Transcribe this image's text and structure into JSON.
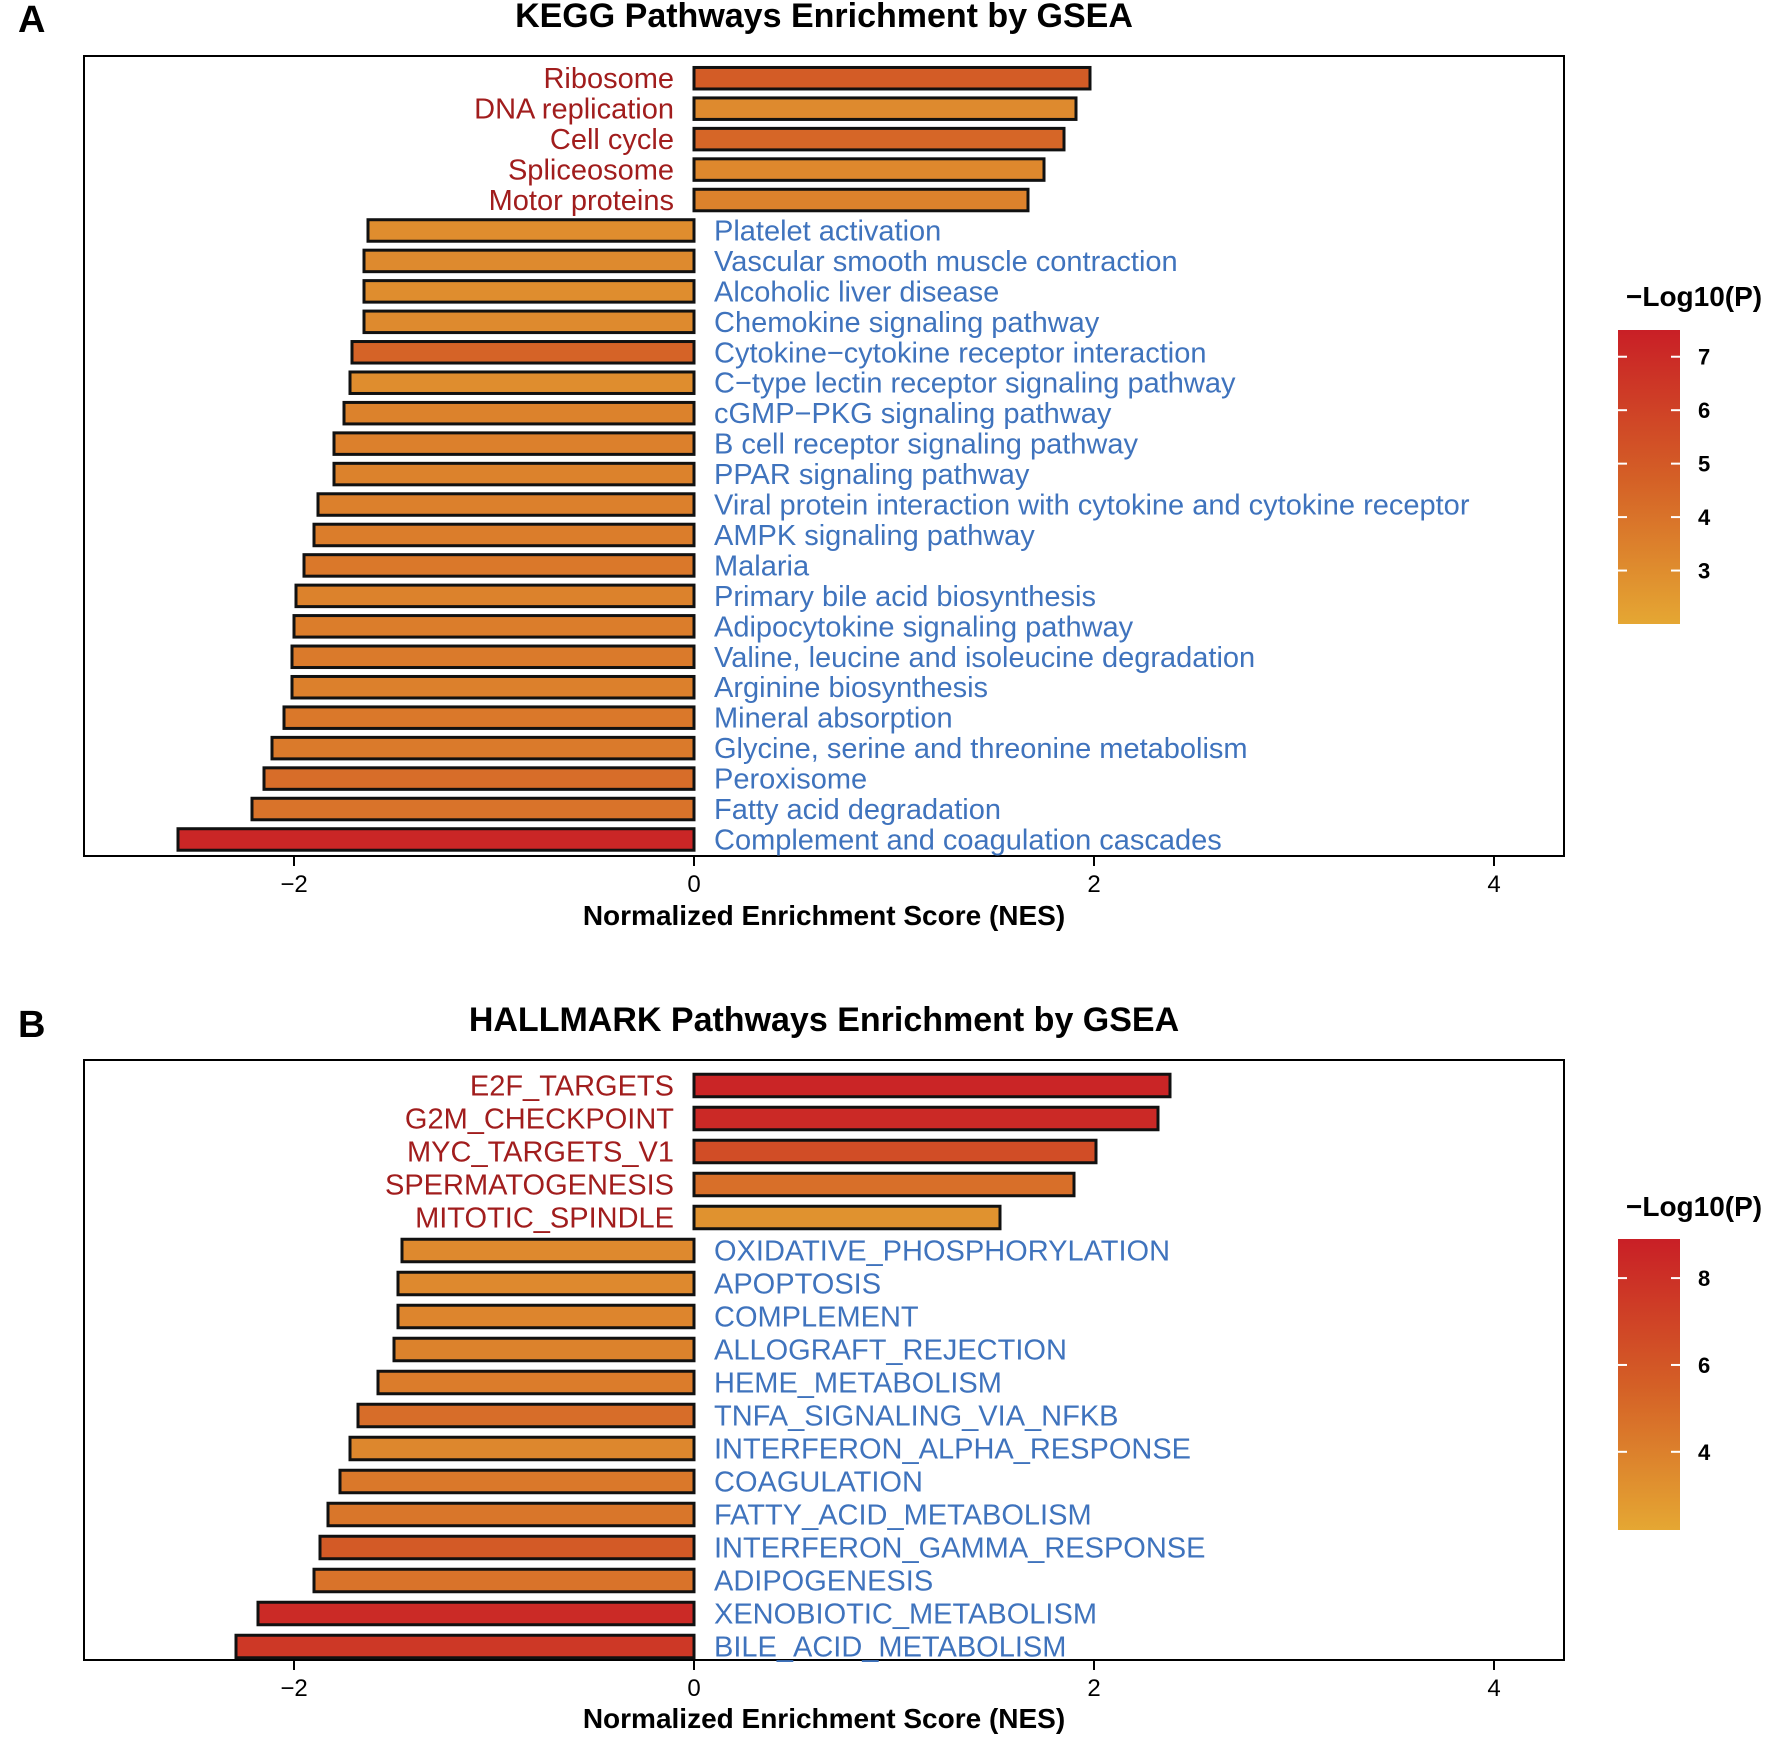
{
  "chart_data": [
    {
      "type": "bar",
      "orientation": "horizontal",
      "panel_label": "A",
      "title": "KEGG Pathways Enrichment by GSEA",
      "xlabel": "Normalized Enrichment Score (NES)",
      "ylabel": "",
      "xlim": [
        -3.05,
        4.35
      ],
      "xticks": [
        -2,
        0,
        2,
        4
      ],
      "xtick_labels": [
        "−2",
        "0",
        "2",
        "4"
      ],
      "grid": false,
      "legend": {
        "title": "−Log10(P)",
        "position": "right",
        "range": [
          2.0,
          7.5
        ],
        "ticks": [
          3,
          4,
          5,
          6,
          7
        ],
        "tick_labels": [
          "3",
          "4",
          "5",
          "6",
          "7"
        ]
      },
      "colors": {
        "low": "#e5a733",
        "mid": "#d45f26",
        "high": "#c91f26",
        "up_label": "#a11d1d",
        "down_label": "#3f73bd"
      },
      "categories": [
        "Ribosome",
        "DNA replication",
        "Cell cycle",
        "Spliceosome",
        "Motor proteins",
        "Platelet activation",
        "Vascular smooth muscle contraction",
        "Alcoholic liver disease",
        "Chemokine signaling pathway",
        "Cytokine−cytokine receptor interaction",
        "C−type lectin receptor signaling pathway",
        "cGMP−PKG signaling pathway",
        "B cell receptor signaling pathway",
        "PPAR signaling pathway",
        "Viral protein interaction with cytokine and cytokine receptor",
        "AMPK signaling pathway",
        "Malaria",
        "Primary bile acid biosynthesis",
        "Adipocytokine signaling pathway",
        "Valine, leucine and isoleucine degradation",
        "Arginine biosynthesis",
        "Mineral absorption",
        "Glycine, serine and threonine metabolism",
        "Peroxisome",
        "Fatty acid degradation",
        "Complement and coagulation cascades"
      ],
      "values": [
        1.98,
        1.91,
        1.85,
        1.75,
        1.67,
        -1.63,
        -1.65,
        -1.65,
        -1.65,
        -1.71,
        -1.72,
        -1.75,
        -1.8,
        -1.8,
        -1.88,
        -1.9,
        -1.95,
        -1.99,
        -2.0,
        -2.01,
        -2.01,
        -2.05,
        -2.11,
        -2.15,
        -2.21,
        -2.58
      ],
      "neglog10p": [
        4.9,
        3.1,
        4.5,
        3.2,
        3.4,
        3.0,
        3.1,
        3.0,
        3.1,
        4.6,
        3.0,
        3.4,
        3.5,
        3.4,
        3.5,
        3.6,
        3.8,
        3.4,
        3.6,
        3.7,
        3.5,
        3.8,
        3.7,
        4.2,
        4.0,
        7.2
      ]
    },
    {
      "type": "bar",
      "orientation": "horizontal",
      "panel_label": "B",
      "title": "HALLMARK Pathways Enrichment by GSEA",
      "xlabel": "Normalized Enrichment Score (NES)",
      "ylabel": "",
      "xlim": [
        -3.05,
        4.35
      ],
      "xticks": [
        -2,
        0,
        2,
        4
      ],
      "xtick_labels": [
        "−2",
        "0",
        "2",
        "4"
      ],
      "grid": false,
      "legend": {
        "title": "−Log10(P)",
        "position": "right",
        "range": [
          2.2,
          8.9
        ],
        "ticks": [
          4,
          6,
          8
        ],
        "tick_labels": [
          "4",
          "6",
          "8"
        ]
      },
      "colors": {
        "low": "#e5a733",
        "mid": "#d45f26",
        "high": "#c91f26",
        "up_label": "#a11d1d",
        "down_label": "#3f73bd"
      },
      "categories": [
        "E2F_TARGETS",
        "G2M_CHECKPOINT",
        "MYC_TARGETS_V1",
        "SPERMATOGENESIS",
        "MITOTIC_SPINDLE",
        "OXIDATIVE_PHOSPHORYLATION",
        "APOPTOSIS",
        "COMPLEMENT",
        "ALLOGRAFT_REJECTION",
        "HEME_METABOLISM",
        "TNFA_SIGNALING_VIA_NFKB",
        "INTERFERON_ALPHA_RESPONSE",
        "COAGULATION",
        "FATTY_ACID_METABOLISM",
        "INTERFERON_GAMMA_RESPONSE",
        "ADIPOGENESIS",
        "XENOBIOTIC_METABOLISM",
        "BILE_ACID_METABOLISM"
      ],
      "values": [
        2.38,
        2.32,
        2.01,
        1.9,
        1.53,
        -1.46,
        -1.48,
        -1.48,
        -1.5,
        -1.58,
        -1.68,
        -1.72,
        -1.77,
        -1.83,
        -1.87,
        -1.9,
        -2.18,
        -2.29
      ],
      "neglog10p": [
        8.6,
        8.4,
        6.5,
        4.8,
        3.2,
        3.6,
        3.6,
        3.8,
        3.9,
        4.2,
        4.9,
        3.7,
        4.4,
        4.5,
        5.8,
        4.6,
        8.3,
        7.6
      ]
    }
  ]
}
